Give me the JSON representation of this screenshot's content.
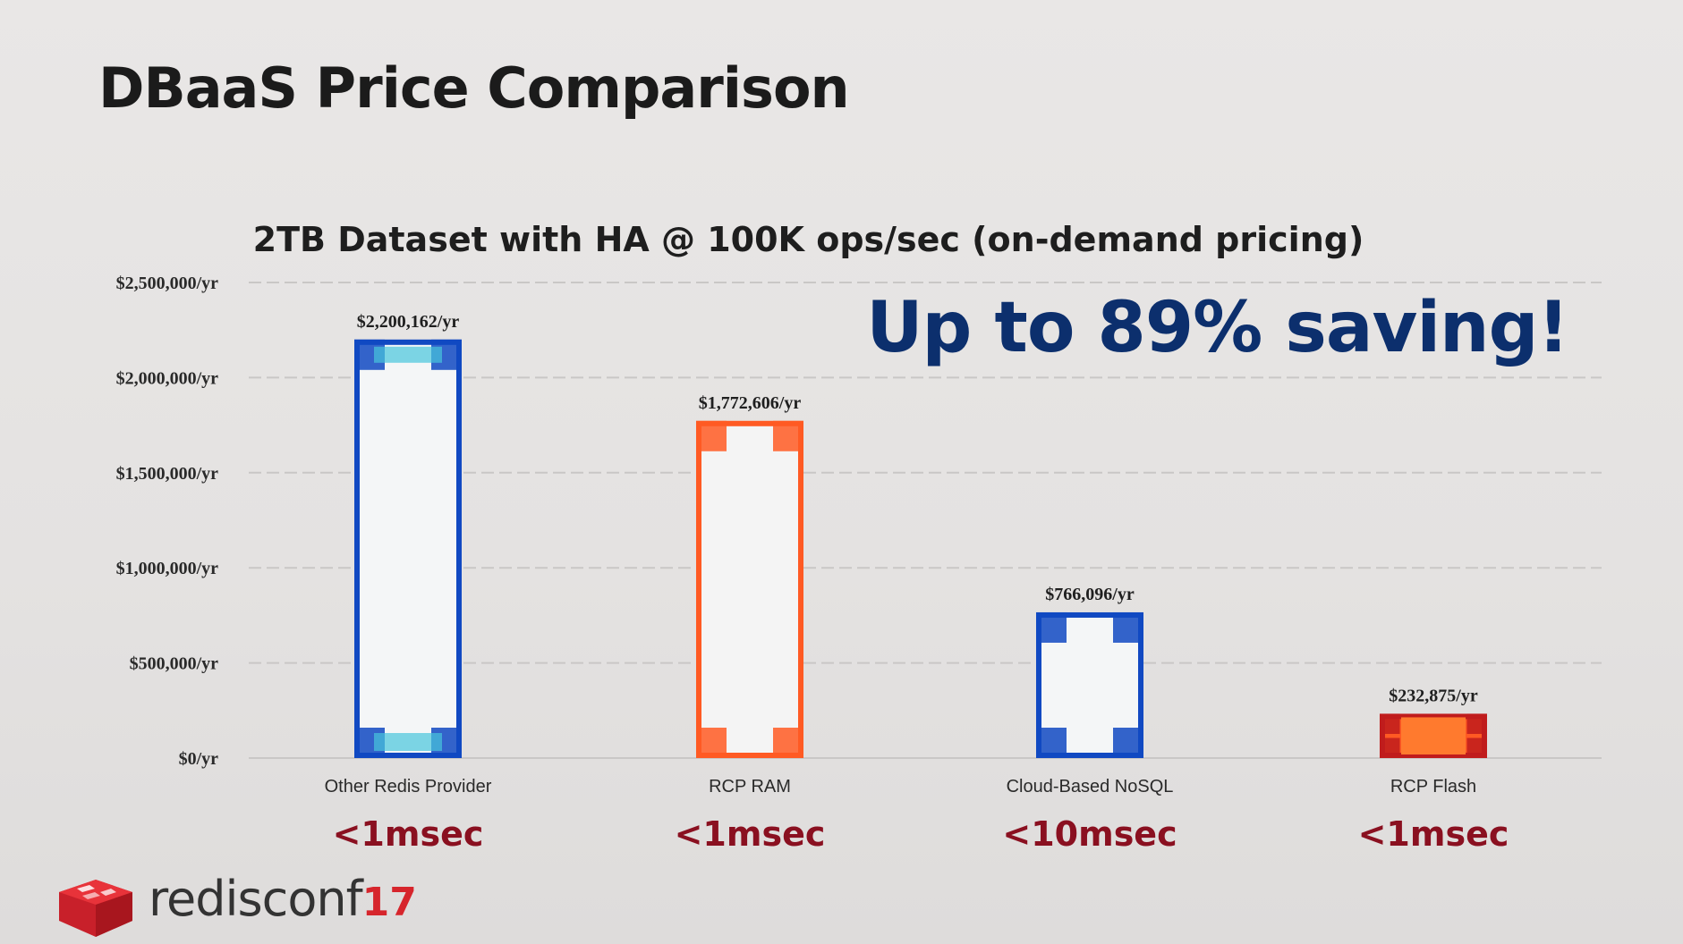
{
  "slide": {
    "title": "DBaaS Price Comparison",
    "callout": "Up to 89% saving!",
    "logo": {
      "brand": "redisconf",
      "edition": "17"
    }
  },
  "colors": {
    "blue_bar": "#1149c2",
    "blue_light": "#47c6dc",
    "orange_bar": "#ff5a23",
    "red_bar": "#c01c1c",
    "navy_text": "#0c2f6d",
    "latency_text": "#8a1020",
    "logo_red": "#d6252c"
  },
  "chart_data": {
    "type": "bar",
    "title": "2TB Dataset with HA @ 100K ops/sec (on-demand pricing)",
    "xlabel": "",
    "ylabel": "",
    "ylim": [
      0,
      2500000
    ],
    "yticks": [
      0,
      500000,
      1000000,
      1500000,
      2000000,
      2500000
    ],
    "ytick_labels": [
      "$0/yr",
      "$500,000/yr",
      "$1,000,000/yr",
      "$1,500,000/yr",
      "$2,000,000/yr",
      "$2,500,000/yr"
    ],
    "grid": true,
    "categories": [
      "Other Redis Provider",
      "RCP RAM",
      "Cloud-Based NoSQL",
      "RCP Flash"
    ],
    "values": [
      2200162,
      1772606,
      766096,
      232875
    ],
    "data_labels": [
      "$2,200,162/yr",
      "$1,772,606/yr",
      "$766,096/yr",
      "$232,875/yr"
    ],
    "latency": [
      "<1msec",
      "<1msec",
      "<10msec",
      "<1msec"
    ]
  }
}
